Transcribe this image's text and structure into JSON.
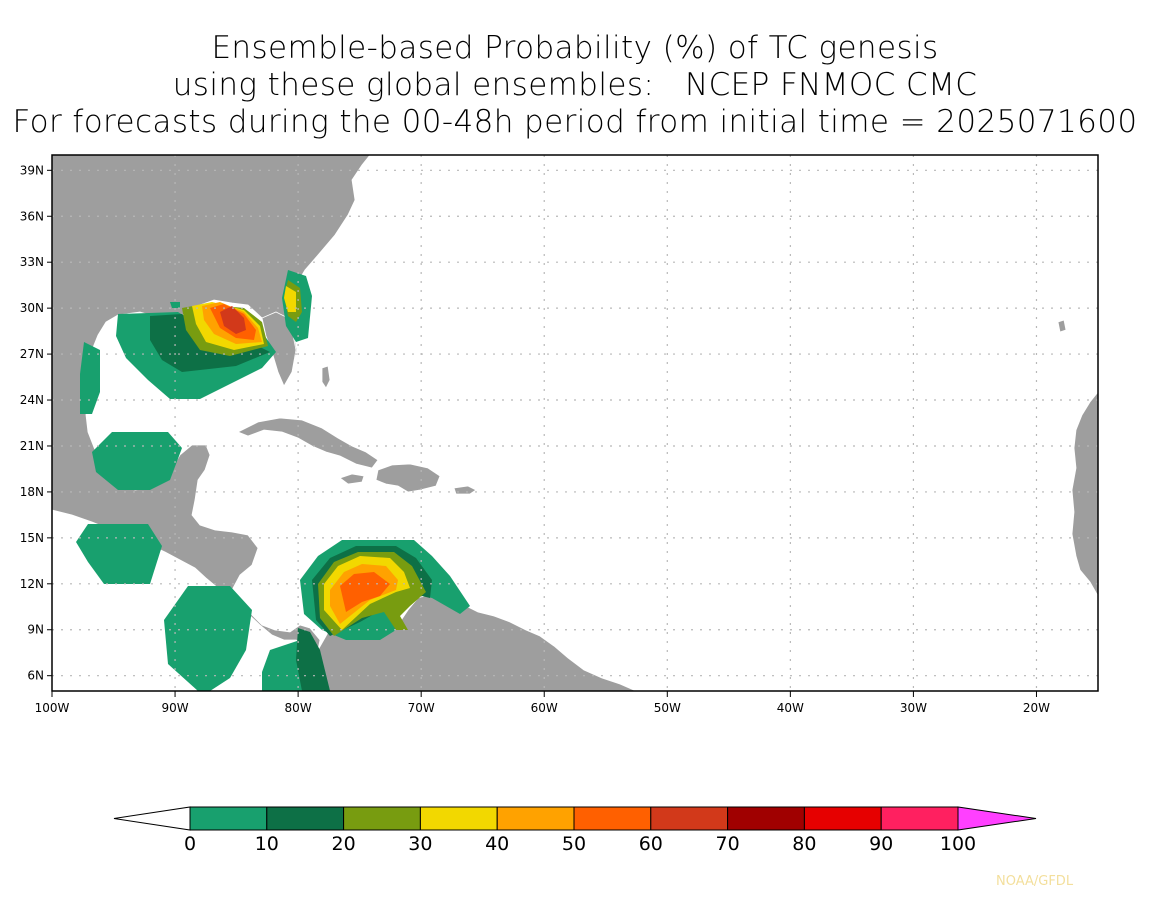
{
  "title": {
    "line1": "Ensemble-based Probability (%) of TC genesis",
    "line2": "using these global ensembles:   NCEP FNMOC CMC",
    "line3": "For forecasts during the 00-48h period from initial time = 2025071600"
  },
  "map": {
    "lon_range": [
      -100,
      -15
    ],
    "lat_range": [
      5,
      40
    ],
    "lon_ticks": [
      "100W",
      "90W",
      "80W",
      "70W",
      "60W",
      "50W",
      "40W",
      "30W",
      "20W"
    ],
    "lat_ticks": [
      "6N",
      "9N",
      "12N",
      "15N",
      "18N",
      "21N",
      "24N",
      "27N",
      "30N",
      "33N",
      "36N",
      "39N"
    ],
    "grid": "dotted",
    "land_color": "#9e9e9e",
    "ocean_color": "#ffffff"
  },
  "colorbar": {
    "labels": [
      "0",
      "10",
      "20",
      "30",
      "40",
      "50",
      "60",
      "70",
      "80",
      "90",
      "100"
    ],
    "colors": [
      "#18a06e",
      "#0d7046",
      "#789c10",
      "#f2d800",
      "#ffa200",
      "#ff6000",
      "#d2391a",
      "#a00000",
      "#e60000",
      "#ff2060"
    ],
    "under_color": "#ffffff",
    "over_color": "#ff40ff"
  },
  "credit": "NOAA/GFDL"
}
